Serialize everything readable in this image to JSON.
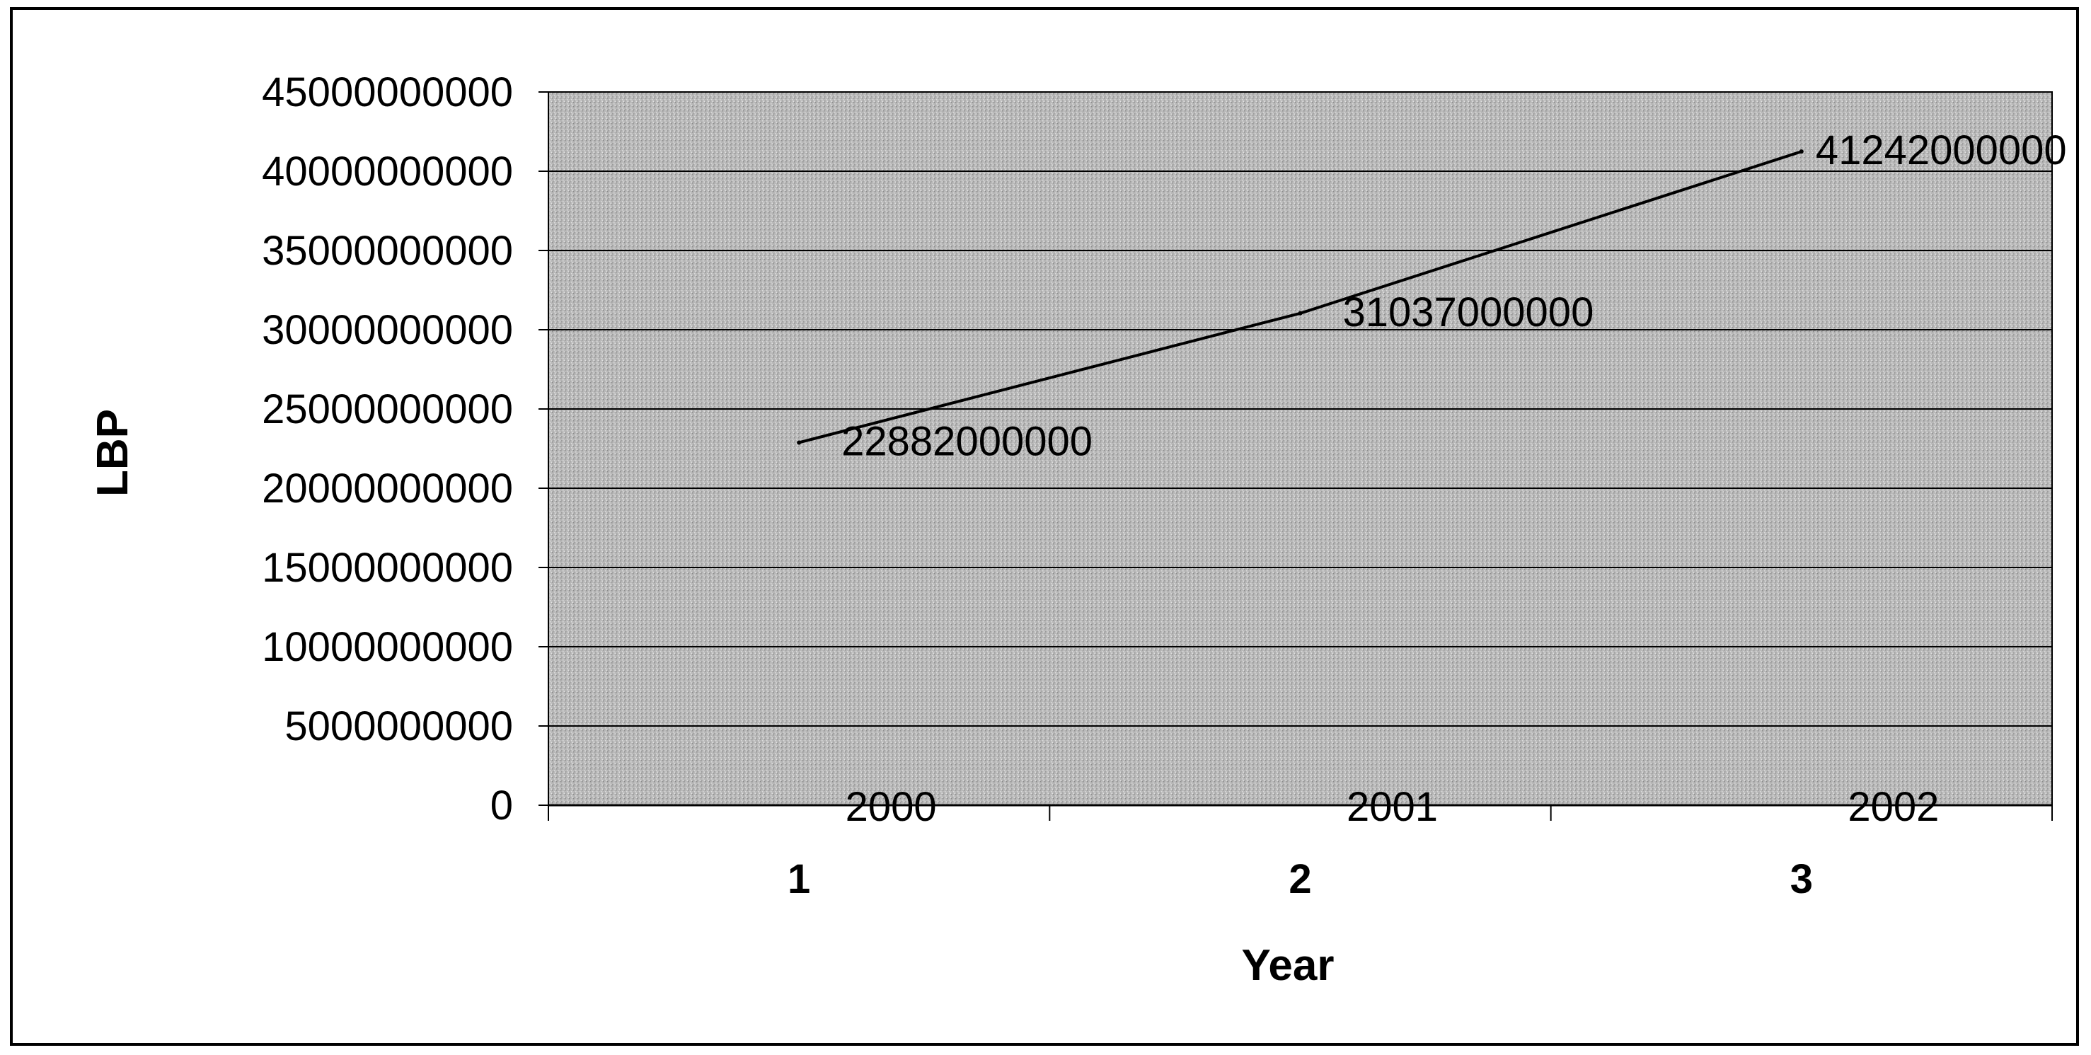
{
  "chart_data": {
    "type": "line",
    "title": "",
    "xlabel": "Year",
    "ylabel": "LBP",
    "x": [
      1,
      2,
      3
    ],
    "x_tick_labels": [
      "1",
      "2",
      "3"
    ],
    "category_labels": [
      "2000",
      "2001",
      "2002"
    ],
    "ylim": [
      0,
      45000000000
    ],
    "y_ticks": [
      0,
      5000000000,
      10000000000,
      15000000000,
      20000000000,
      25000000000,
      30000000000,
      35000000000,
      40000000000,
      45000000000
    ],
    "y_tick_labels": [
      "0",
      "5000000000",
      "10000000000",
      "15000000000",
      "20000000000",
      "25000000000",
      "30000000000",
      "35000000000",
      "40000000000",
      "45000000000"
    ],
    "series": [
      {
        "values": [
          22882000000,
          31037000000,
          41242000000
        ],
        "data_labels": [
          "22882000000",
          "31037000000",
          "41242000000"
        ]
      }
    ],
    "grid": true,
    "legend": "none",
    "plot_background": "#b8b8b8",
    "line_color": "#000000"
  }
}
